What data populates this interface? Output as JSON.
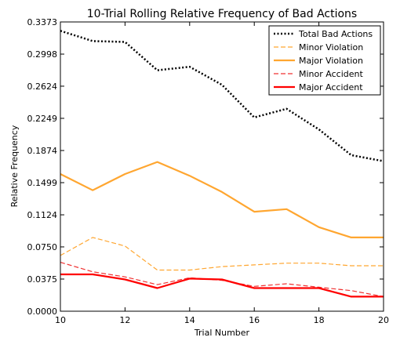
{
  "chart_data": {
    "type": "line",
    "title": "10-Trial Rolling Relative Frequency of Bad Actions",
    "xlabel": "Trial Number",
    "ylabel": "Relative Frequency",
    "xlim": [
      10,
      20
    ],
    "ylim": [
      0,
      0.3373
    ],
    "x_ticks": [
      10,
      12,
      14,
      16,
      18,
      20
    ],
    "x_tick_labels": [
      "10",
      "12",
      "14",
      "16",
      "18",
      "20"
    ],
    "y_ticks": [
      0,
      0.0375,
      0.075,
      0.1124,
      0.1499,
      0.1874,
      0.2249,
      0.2624,
      0.2998,
      0.3373
    ],
    "y_tick_labels": [
      "0.0000",
      "0.0375",
      "0.0750",
      "0.1124",
      "0.1499",
      "0.1874",
      "0.2249",
      "0.2624",
      "0.2998",
      "0.3373"
    ],
    "grid": false,
    "legend_position": "top-right",
    "x": [
      10,
      11,
      12,
      13,
      14,
      15,
      16,
      17,
      18,
      19,
      20
    ],
    "series": [
      {
        "name": "Total Bad Actions",
        "color": "#000000",
        "style": "dotted",
        "width": 2.5,
        "values": [
          0.327,
          0.315,
          0.314,
          0.281,
          0.285,
          0.264,
          0.226,
          0.236,
          0.212,
          0.182,
          0.175
        ]
      },
      {
        "name": "Minor Violation",
        "color": "#ffa630",
        "style": "dashed",
        "width": 1.2,
        "values": [
          0.065,
          0.086,
          0.076,
          0.048,
          0.048,
          0.052,
          0.054,
          0.056,
          0.056,
          0.053,
          0.053
        ]
      },
      {
        "name": "Major Violation",
        "color": "#ffa630",
        "style": "solid",
        "width": 2.2,
        "values": [
          0.16,
          0.141,
          0.16,
          0.174,
          0.158,
          0.139,
          0.116,
          0.119,
          0.098,
          0.086,
          0.086
        ]
      },
      {
        "name": "Minor Accident",
        "color": "#f03030",
        "style": "dashed",
        "width": 1.2,
        "values": [
          0.057,
          0.046,
          0.04,
          0.031,
          0.039,
          0.036,
          0.029,
          0.032,
          0.028,
          0.024,
          0.017
        ]
      },
      {
        "name": "Major Accident",
        "color": "#ff0000",
        "style": "solid",
        "width": 2.2,
        "values": [
          0.043,
          0.043,
          0.037,
          0.027,
          0.038,
          0.037,
          0.027,
          0.027,
          0.027,
          0.017,
          0.017
        ]
      }
    ]
  }
}
